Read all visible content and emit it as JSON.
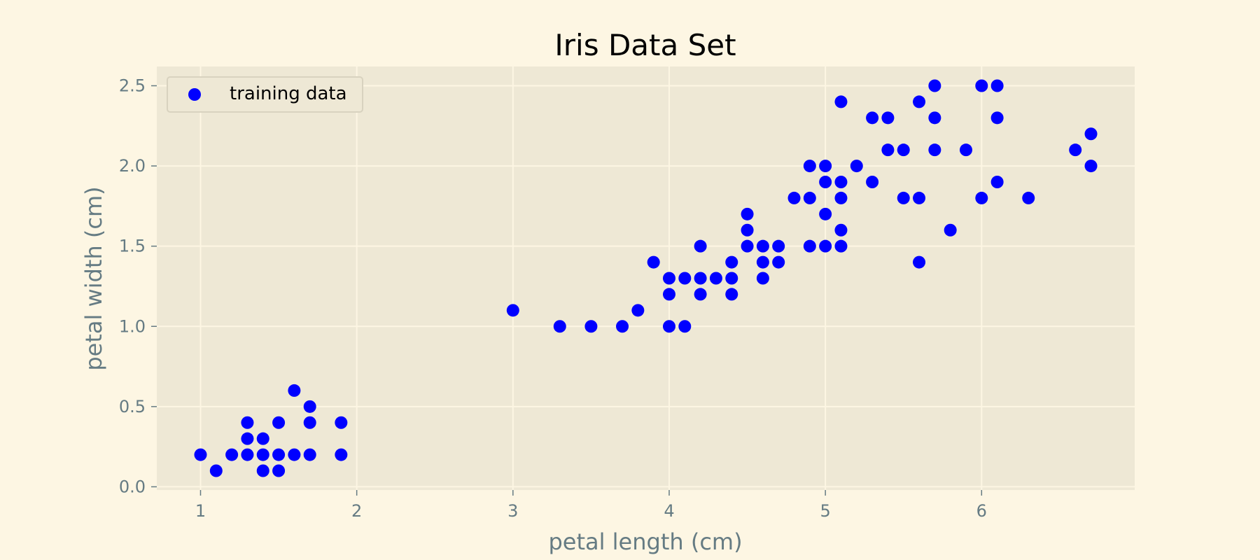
{
  "chart_data": {
    "type": "scatter",
    "title": "Iris Data Set",
    "xlabel": "petal length (cm)",
    "ylabel": "petal width (cm)",
    "xlim": [
      0.72,
      6.98
    ],
    "ylim": [
      -0.02,
      2.62
    ],
    "xticks": [
      1,
      2,
      3,
      4,
      5,
      6
    ],
    "xtick_labels": [
      "1",
      "2",
      "3",
      "4",
      "5",
      "6"
    ],
    "yticks": [
      0.0,
      0.5,
      1.0,
      1.5,
      2.0,
      2.5
    ],
    "ytick_labels": [
      "0.0",
      "0.5",
      "1.0",
      "1.5",
      "2.0",
      "2.5"
    ],
    "grid": true,
    "legend_position": "upper-left",
    "colors": {
      "figure_background": "#fdf6e3",
      "plot_background": "#eee8d5",
      "grid": "#fdf6e3",
      "point": "#0000ff",
      "axis_text": "#657b83"
    },
    "series": [
      {
        "name": "training data",
        "points": [
          [
            1.0,
            0.2
          ],
          [
            1.1,
            0.1
          ],
          [
            1.2,
            0.2
          ],
          [
            1.3,
            0.4
          ],
          [
            1.3,
            0.3
          ],
          [
            1.3,
            0.2
          ],
          [
            1.4,
            0.3
          ],
          [
            1.4,
            0.2
          ],
          [
            1.4,
            0.1
          ],
          [
            1.5,
            0.4
          ],
          [
            1.5,
            0.2
          ],
          [
            1.5,
            0.1
          ],
          [
            1.6,
            0.6
          ],
          [
            1.6,
            0.2
          ],
          [
            1.7,
            0.5
          ],
          [
            1.7,
            0.4
          ],
          [
            1.7,
            0.2
          ],
          [
            1.9,
            0.4
          ],
          [
            1.9,
            0.2
          ],
          [
            3.0,
            1.1
          ],
          [
            3.3,
            1.0
          ],
          [
            3.5,
            1.0
          ],
          [
            3.7,
            1.0
          ],
          [
            3.8,
            1.1
          ],
          [
            3.9,
            1.4
          ],
          [
            4.0,
            1.3
          ],
          [
            4.0,
            1.2
          ],
          [
            4.0,
            1.0
          ],
          [
            4.1,
            1.3
          ],
          [
            4.1,
            1.0
          ],
          [
            4.2,
            1.5
          ],
          [
            4.2,
            1.3
          ],
          [
            4.2,
            1.2
          ],
          [
            4.3,
            1.3
          ],
          [
            4.4,
            1.4
          ],
          [
            4.4,
            1.3
          ],
          [
            4.4,
            1.2
          ],
          [
            4.5,
            1.7
          ],
          [
            4.5,
            1.6
          ],
          [
            4.5,
            1.5
          ],
          [
            4.6,
            1.5
          ],
          [
            4.6,
            1.4
          ],
          [
            4.6,
            1.3
          ],
          [
            4.7,
            1.5
          ],
          [
            4.7,
            1.4
          ],
          [
            4.8,
            1.8
          ],
          [
            4.9,
            2.0
          ],
          [
            4.9,
            1.8
          ],
          [
            4.9,
            1.5
          ],
          [
            5.0,
            2.0
          ],
          [
            5.0,
            1.9
          ],
          [
            5.0,
            1.7
          ],
          [
            5.0,
            1.5
          ],
          [
            5.1,
            2.4
          ],
          [
            5.1,
            1.9
          ],
          [
            5.1,
            1.8
          ],
          [
            5.1,
            1.6
          ],
          [
            5.1,
            1.5
          ],
          [
            5.2,
            2.0
          ],
          [
            5.3,
            2.3
          ],
          [
            5.3,
            1.9
          ],
          [
            5.4,
            2.3
          ],
          [
            5.4,
            2.1
          ],
          [
            5.5,
            2.1
          ],
          [
            5.5,
            1.8
          ],
          [
            5.6,
            2.4
          ],
          [
            5.6,
            1.8
          ],
          [
            5.6,
            1.4
          ],
          [
            5.7,
            2.5
          ],
          [
            5.7,
            2.3
          ],
          [
            5.7,
            2.1
          ],
          [
            5.8,
            1.6
          ],
          [
            5.9,
            2.1
          ],
          [
            6.0,
            2.5
          ],
          [
            6.0,
            1.8
          ],
          [
            6.1,
            2.5
          ],
          [
            6.1,
            2.3
          ],
          [
            6.1,
            1.9
          ],
          [
            6.3,
            1.8
          ],
          [
            6.6,
            2.1
          ],
          [
            6.7,
            2.2
          ],
          [
            6.7,
            2.0
          ]
        ]
      }
    ]
  }
}
